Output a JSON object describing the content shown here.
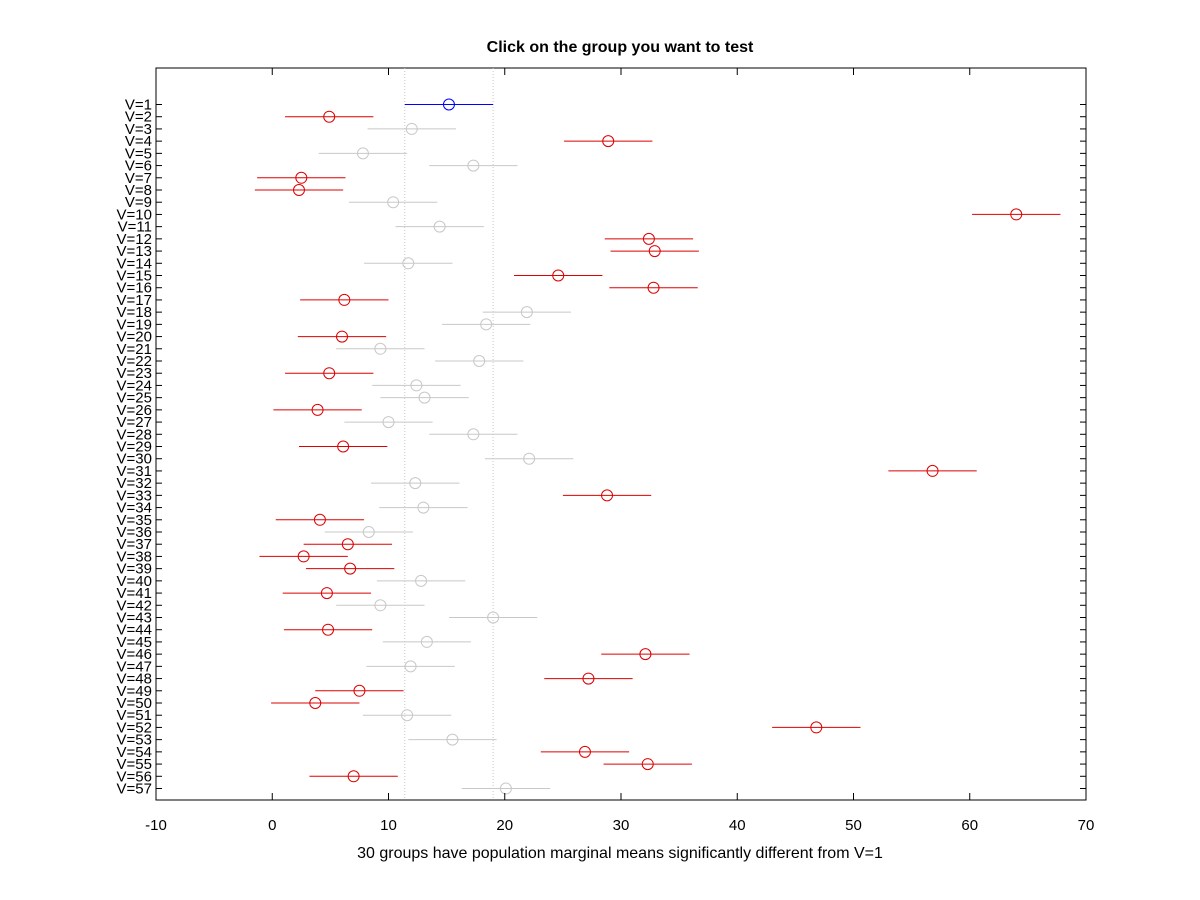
{
  "colors": {
    "selected": "#0000ff",
    "significant": "#dd0000",
    "not_significant": "#c8c8c8",
    "axis": "#000000",
    "reference_lines": "#c8c8c8"
  },
  "chart_data": {
    "type": "errorbar",
    "title": "Click on the group you want to test",
    "xlabel": "30 groups have population marginal means significantly different from V=1",
    "xlim": [
      -10,
      70
    ],
    "xticks": [
      "-10",
      "0",
      "10",
      "20",
      "30",
      "40",
      "50",
      "60",
      "70"
    ],
    "half_width": 3.8,
    "selected_group": "V=1",
    "reference_interval": [
      11.4,
      19.0
    ],
    "groups": [
      {
        "label": "V=1",
        "mean": 15.2,
        "status": "selected"
      },
      {
        "label": "V=2",
        "mean": 4.9,
        "status": "significant"
      },
      {
        "label": "V=3",
        "mean": 12.0,
        "status": "not_significant"
      },
      {
        "label": "V=4",
        "mean": 28.9,
        "status": "significant"
      },
      {
        "label": "V=5",
        "mean": 7.8,
        "status": "not_significant"
      },
      {
        "label": "V=6",
        "mean": 17.3,
        "status": "not_significant"
      },
      {
        "label": "V=7",
        "mean": 2.5,
        "status": "significant"
      },
      {
        "label": "V=8",
        "mean": 2.3,
        "status": "significant"
      },
      {
        "label": "V=9",
        "mean": 10.4,
        "status": "not_significant"
      },
      {
        "label": "V=10",
        "mean": 64.0,
        "status": "significant"
      },
      {
        "label": "V=11",
        "mean": 14.4,
        "status": "not_significant"
      },
      {
        "label": "V=12",
        "mean": 32.4,
        "status": "significant"
      },
      {
        "label": "V=13",
        "mean": 32.9,
        "status": "significant"
      },
      {
        "label": "V=14",
        "mean": 11.7,
        "status": "not_significant"
      },
      {
        "label": "V=15",
        "mean": 24.6,
        "status": "significant"
      },
      {
        "label": "V=16",
        "mean": 32.8,
        "status": "significant"
      },
      {
        "label": "V=17",
        "mean": 6.2,
        "status": "significant"
      },
      {
        "label": "V=18",
        "mean": 21.9,
        "status": "not_significant"
      },
      {
        "label": "V=19",
        "mean": 18.4,
        "status": "not_significant"
      },
      {
        "label": "V=20",
        "mean": 6.0,
        "status": "significant"
      },
      {
        "label": "V=21",
        "mean": 9.3,
        "status": "not_significant"
      },
      {
        "label": "V=22",
        "mean": 17.8,
        "status": "not_significant"
      },
      {
        "label": "V=23",
        "mean": 4.9,
        "status": "significant"
      },
      {
        "label": "V=24",
        "mean": 12.4,
        "status": "not_significant"
      },
      {
        "label": "V=25",
        "mean": 13.1,
        "status": "not_significant"
      },
      {
        "label": "V=26",
        "mean": 3.9,
        "status": "significant"
      },
      {
        "label": "V=27",
        "mean": 10.0,
        "status": "not_significant"
      },
      {
        "label": "V=28",
        "mean": 17.3,
        "status": "not_significant"
      },
      {
        "label": "V=29",
        "mean": 6.1,
        "status": "significant"
      },
      {
        "label": "V=30",
        "mean": 22.1,
        "status": "not_significant"
      },
      {
        "label": "V=31",
        "mean": 56.8,
        "status": "significant"
      },
      {
        "label": "V=32",
        "mean": 12.3,
        "status": "not_significant"
      },
      {
        "label": "V=33",
        "mean": 28.8,
        "status": "significant"
      },
      {
        "label": "V=34",
        "mean": 13.0,
        "status": "not_significant"
      },
      {
        "label": "V=35",
        "mean": 4.1,
        "status": "significant"
      },
      {
        "label": "V=36",
        "mean": 8.3,
        "status": "not_significant"
      },
      {
        "label": "V=37",
        "mean": 6.5,
        "status": "significant"
      },
      {
        "label": "V=38",
        "mean": 2.7,
        "status": "significant"
      },
      {
        "label": "V=39",
        "mean": 6.7,
        "status": "significant"
      },
      {
        "label": "V=40",
        "mean": 12.8,
        "status": "not_significant"
      },
      {
        "label": "V=41",
        "mean": 4.7,
        "status": "significant"
      },
      {
        "label": "V=42",
        "mean": 9.3,
        "status": "not_significant"
      },
      {
        "label": "V=43",
        "mean": 19.0,
        "status": "not_significant"
      },
      {
        "label": "V=44",
        "mean": 4.8,
        "status": "significant"
      },
      {
        "label": "V=45",
        "mean": 13.3,
        "status": "not_significant"
      },
      {
        "label": "V=46",
        "mean": 32.1,
        "status": "significant"
      },
      {
        "label": "V=47",
        "mean": 11.9,
        "status": "not_significant"
      },
      {
        "label": "V=48",
        "mean": 27.2,
        "status": "significant"
      },
      {
        "label": "V=49",
        "mean": 7.5,
        "status": "significant"
      },
      {
        "label": "V=50",
        "mean": 3.7,
        "status": "significant"
      },
      {
        "label": "V=51",
        "mean": 11.6,
        "status": "not_significant"
      },
      {
        "label": "V=52",
        "mean": 46.8,
        "status": "significant"
      },
      {
        "label": "V=53",
        "mean": 15.5,
        "status": "not_significant"
      },
      {
        "label": "V=54",
        "mean": 26.9,
        "status": "significant"
      },
      {
        "label": "V=55",
        "mean": 32.3,
        "status": "significant"
      },
      {
        "label": "V=56",
        "mean": 7.0,
        "status": "significant"
      },
      {
        "label": "V=57",
        "mean": 20.1,
        "status": "not_significant"
      }
    ]
  }
}
